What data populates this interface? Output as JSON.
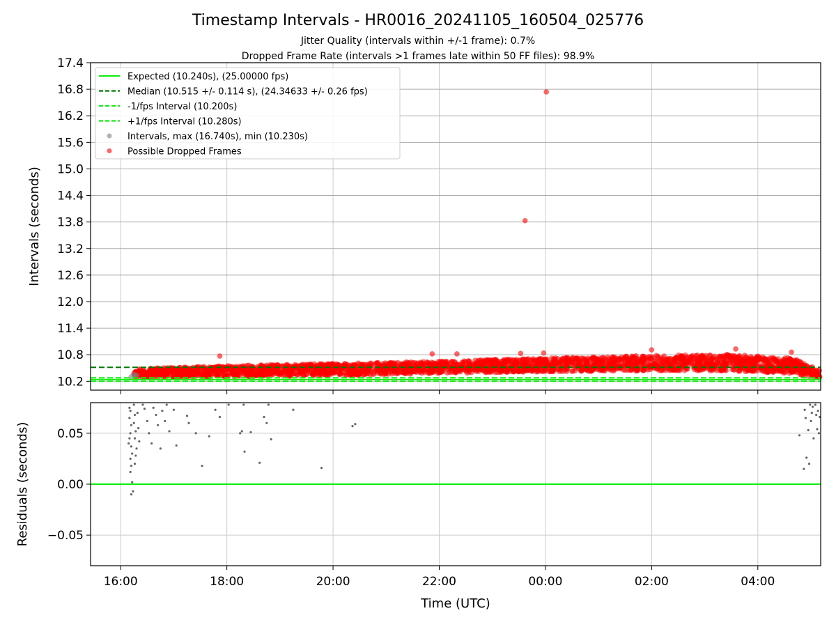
{
  "chart_data": [
    {
      "type": "scatter",
      "title": "Timestamp Intervals - HR0016_20241105_160504_025776",
      "subtitle_lines": [
        "Jitter Quality (intervals within +/-1 frame): 0.7%",
        "Dropped Frame Rate (intervals >1 frames late within 50 FF files): 98.9%"
      ],
      "xlabel": "",
      "ylabel": "Intervals (seconds)",
      "ylim": [
        10.0,
        17.4
      ],
      "yticks": [
        "10.2",
        "10.8",
        "11.4",
        "12.0",
        "12.6",
        "13.2",
        "13.8",
        "14.4",
        "15.0",
        "15.6",
        "16.2",
        "16.8",
        "17.4"
      ],
      "grid": true,
      "legend_position": "upper-left",
      "legend": [
        {
          "label": "Expected (10.240s), (25.00000 fps)",
          "style": "solid-line",
          "color": "#11ee11"
        },
        {
          "label": "Median (10.515 +/- 0.114 s), (24.34633 +/- 0.26 fps)",
          "style": "dashed-line",
          "color": "#007a00"
        },
        {
          "label": "-1/fps Interval (10.200s)",
          "style": "dashed-line",
          "color": "#11ee11"
        },
        {
          "label": "+1/fps Interval (10.280s)",
          "style": "dashed-line",
          "color": "#11ee11"
        },
        {
          "label": "Intervals, max (16.740s), min (10.230s)",
          "style": "marker",
          "color": "#808080"
        },
        {
          "label": "Possible Dropped Frames",
          "style": "marker",
          "color": "#ff0000"
        }
      ],
      "reference_lines": [
        {
          "name": "expected",
          "y": 10.24
        },
        {
          "name": "median",
          "y": 10.515
        },
        {
          "name": "minus_fps",
          "y": 10.2
        },
        {
          "name": "plus_fps",
          "y": 10.28
        }
      ],
      "outliers": [
        {
          "x": "23:37",
          "y": 13.83
        },
        {
          "x": "00:01",
          "y": 16.74
        },
        {
          "x": "17:52",
          "y": 10.77
        },
        {
          "x": "21:52",
          "y": 10.82
        },
        {
          "x": "22:20",
          "y": 10.82
        },
        {
          "x": "23:32",
          "y": 10.83
        },
        {
          "x": "23:58",
          "y": 10.84
        },
        {
          "x": "02:00",
          "y": 10.91
        },
        {
          "x": "03:35",
          "y": 10.93
        },
        {
          "x": "04:38",
          "y": 10.86
        }
      ],
      "band_trend": [
        {
          "x": "16:15",
          "low": 10.28,
          "high": 10.48
        },
        {
          "x": "18:00",
          "low": 10.3,
          "high": 10.55
        },
        {
          "x": "20:00",
          "low": 10.33,
          "high": 10.6
        },
        {
          "x": "22:00",
          "low": 10.38,
          "high": 10.65
        },
        {
          "x": "00:00",
          "low": 10.42,
          "high": 10.72
        },
        {
          "x": "02:00",
          "low": 10.44,
          "high": 10.78
        },
        {
          "x": "03:30",
          "low": 10.43,
          "high": 10.8
        },
        {
          "x": "04:40",
          "low": 10.38,
          "high": 10.72
        },
        {
          "x": "05:10",
          "low": 10.27,
          "high": 10.45
        }
      ]
    },
    {
      "type": "scatter",
      "xlabel": "Time (UTC)",
      "ylabel": "Residuals (seconds)",
      "ylim": [
        -0.08,
        0.08
      ],
      "yticks": [
        "−0.05",
        "0.00",
        "0.05"
      ],
      "xticks": [
        "16:00",
        "18:00",
        "20:00",
        "22:00",
        "00:00",
        "02:00",
        "04:00"
      ],
      "xlim": [
        "15:26",
        "05:11"
      ],
      "grid": true,
      "zero_line_color": "#11ee11",
      "points": [
        {
          "x": "16:10",
          "y": 0.075
        },
        {
          "x": "16:11",
          "y": 0.072
        },
        {
          "x": "16:10",
          "y": 0.065
        },
        {
          "x": "16:12",
          "y": 0.058
        },
        {
          "x": "16:11",
          "y": 0.05
        },
        {
          "x": "16:10",
          "y": 0.045
        },
        {
          "x": "16:09",
          "y": 0.04
        },
        {
          "x": "16:12",
          "y": 0.037
        },
        {
          "x": "16:13",
          "y": 0.03
        },
        {
          "x": "16:11",
          "y": 0.025
        },
        {
          "x": "16:12",
          "y": 0.018
        },
        {
          "x": "16:11",
          "y": 0.012
        },
        {
          "x": "16:13",
          "y": 0.002
        },
        {
          "x": "16:12",
          "y": -0.01
        },
        {
          "x": "16:14",
          "y": -0.007
        },
        {
          "x": "16:15",
          "y": 0.078
        },
        {
          "x": "16:16",
          "y": 0.068
        },
        {
          "x": "16:15",
          "y": 0.06
        },
        {
          "x": "16:17",
          "y": 0.052
        },
        {
          "x": "16:16",
          "y": 0.045
        },
        {
          "x": "16:18",
          "y": 0.035
        },
        {
          "x": "16:17",
          "y": 0.028
        },
        {
          "x": "16:16",
          "y": 0.02
        },
        {
          "x": "16:19",
          "y": 0.07
        },
        {
          "x": "16:20",
          "y": 0.055
        },
        {
          "x": "16:21",
          "y": 0.042
        },
        {
          "x": "16:25",
          "y": 0.078
        },
        {
          "x": "16:27",
          "y": 0.074
        },
        {
          "x": "16:30",
          "y": 0.062
        },
        {
          "x": "16:32",
          "y": 0.05
        },
        {
          "x": "16:35",
          "y": 0.04
        },
        {
          "x": "16:37",
          "y": 0.075
        },
        {
          "x": "16:40",
          "y": 0.068
        },
        {
          "x": "16:42",
          "y": 0.058
        },
        {
          "x": "16:45",
          "y": 0.035
        },
        {
          "x": "16:47",
          "y": 0.072
        },
        {
          "x": "16:50",
          "y": 0.062
        },
        {
          "x": "16:52",
          "y": 0.078
        },
        {
          "x": "16:55",
          "y": 0.052
        },
        {
          "x": "17:00",
          "y": 0.073
        },
        {
          "x": "17:03",
          "y": 0.038
        },
        {
          "x": "17:15",
          "y": 0.067
        },
        {
          "x": "17:17",
          "y": 0.06
        },
        {
          "x": "17:25",
          "y": 0.05
        },
        {
          "x": "17:32",
          "y": 0.018
        },
        {
          "x": "17:40",
          "y": 0.047
        },
        {
          "x": "17:47",
          "y": 0.073
        },
        {
          "x": "17:52",
          "y": 0.066
        },
        {
          "x": "18:02",
          "y": 0.078
        },
        {
          "x": "18:15",
          "y": 0.05
        },
        {
          "x": "18:17",
          "y": 0.052
        },
        {
          "x": "18:19",
          "y": 0.078
        },
        {
          "x": "18:20",
          "y": 0.032
        },
        {
          "x": "18:27",
          "y": 0.051
        },
        {
          "x": "18:37",
          "y": 0.021
        },
        {
          "x": "18:42",
          "y": 0.066
        },
        {
          "x": "18:45",
          "y": 0.06
        },
        {
          "x": "18:47",
          "y": 0.078
        },
        {
          "x": "18:50",
          "y": 0.044
        },
        {
          "x": "19:15",
          "y": 0.073
        },
        {
          "x": "19:47",
          "y": 0.016
        },
        {
          "x": "20:22",
          "y": 0.057
        },
        {
          "x": "20:25",
          "y": 0.059
        },
        {
          "x": "04:47",
          "y": 0.048
        },
        {
          "x": "04:52",
          "y": 0.015
        },
        {
          "x": "04:53",
          "y": 0.073
        },
        {
          "x": "04:54",
          "y": 0.065
        },
        {
          "x": "04:55",
          "y": 0.026
        },
        {
          "x": "04:57",
          "y": 0.053
        },
        {
          "x": "04:58",
          "y": 0.02
        },
        {
          "x": "04:59",
          "y": 0.078
        },
        {
          "x": "05:00",
          "y": 0.062
        },
        {
          "x": "05:01",
          "y": 0.07
        },
        {
          "x": "05:02",
          "y": 0.076
        },
        {
          "x": "05:03",
          "y": 0.045
        },
        {
          "x": "05:05",
          "y": 0.078
        },
        {
          "x": "05:06",
          "y": 0.068
        },
        {
          "x": "05:07",
          "y": 0.054
        },
        {
          "x": "05:08",
          "y": 0.072
        },
        {
          "x": "05:09",
          "y": 0.05
        },
        {
          "x": "05:10",
          "y": 0.066
        }
      ]
    }
  ]
}
